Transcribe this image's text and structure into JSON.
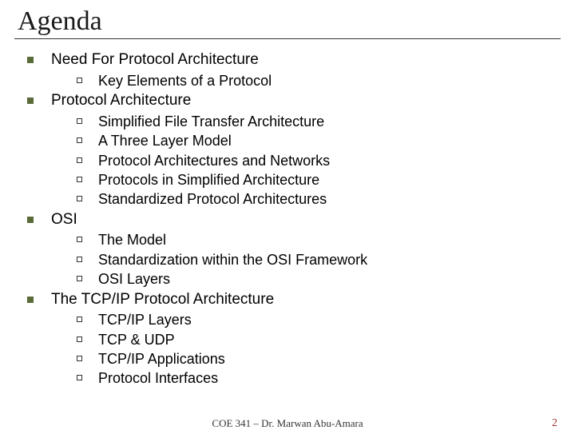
{
  "slide": {
    "title": "Agenda",
    "footer": "COE 341 – Dr. Marwan Abu-Amara",
    "page_number": "2",
    "items": [
      {
        "label": "Need For Protocol Architecture",
        "sub": [
          "Key Elements of a Protocol"
        ]
      },
      {
        "label": "Protocol Architecture",
        "sub": [
          "Simplified File Transfer Architecture",
          "A Three Layer Model",
          "Protocol Architectures and Networks",
          "Protocols in Simplified Architecture",
          "Standardized Protocol Architectures"
        ]
      },
      {
        "label": "OSI",
        "sub": [
          "The Model",
          "Standardization within the OSI Framework",
          "OSI Layers"
        ]
      },
      {
        "label": "The TCP/IP Protocol Architecture",
        "sub": [
          "TCP/IP Layers",
          "TCP & UDP",
          "TCP/IP Applications",
          "Protocol Interfaces"
        ]
      }
    ]
  },
  "style": {
    "l1_bullet_color": "#5a6b3a",
    "page_num_color": "#a03030",
    "title_font": "Times New Roman",
    "body_font": "Arial",
    "title_fontsize": 34,
    "l1_fontsize": 19,
    "l2_fontsize": 18
  }
}
